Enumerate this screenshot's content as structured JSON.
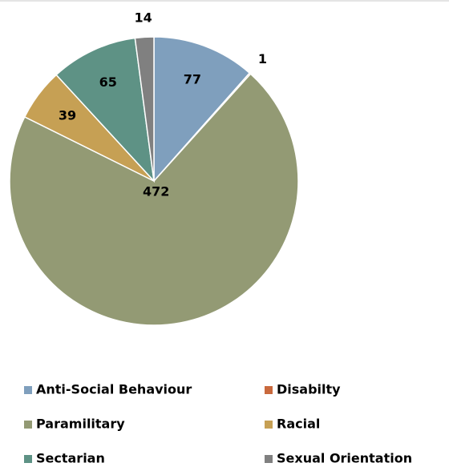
{
  "chart_data": {
    "type": "pie",
    "categories": [
      "Anti-Social Behaviour",
      "Disabilty",
      "Paramilitary",
      "Racial",
      "Sectarian",
      "Sexual Orientation"
    ],
    "values": [
      77,
      1,
      472,
      39,
      65,
      14
    ],
    "colors": [
      "#7f9fbd",
      "#c9693d",
      "#939a74",
      "#c6a054",
      "#5e9285",
      "#808080"
    ],
    "legend": "bottom"
  }
}
